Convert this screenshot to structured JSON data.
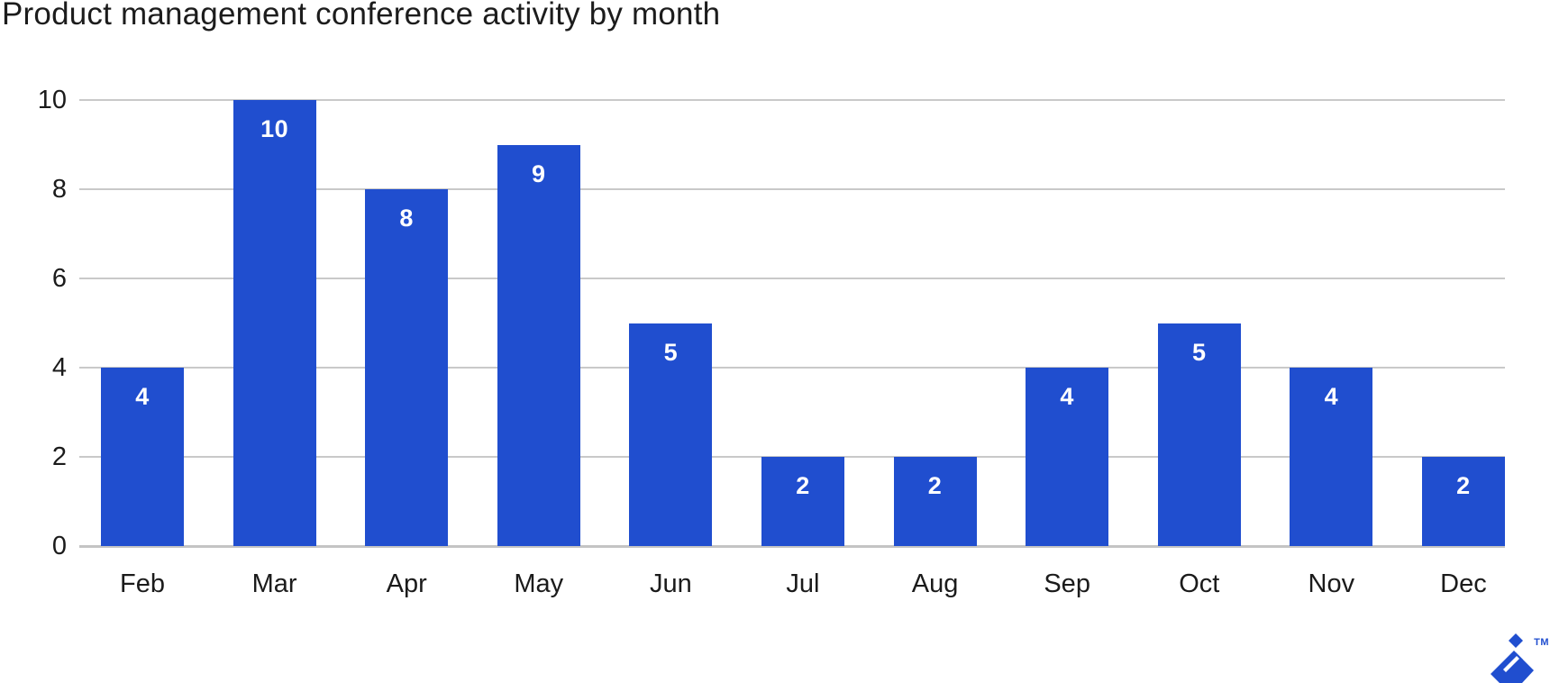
{
  "title": "Product management conference activity by month",
  "brand": {
    "trademark": "TM",
    "accent_color": "#204ECF"
  },
  "chart_data": {
    "type": "bar",
    "title": "Product management conference activity by month",
    "categories": [
      "Feb",
      "Mar",
      "Apr",
      "May",
      "Jun",
      "Jul",
      "Aug",
      "Sep",
      "Oct",
      "Nov",
      "Dec"
    ],
    "values": [
      4,
      10,
      8,
      9,
      5,
      2,
      2,
      4,
      5,
      4,
      2
    ],
    "xlabel": "",
    "ylabel": "",
    "ylim": [
      0,
      10
    ],
    "yticks": [
      0,
      2,
      4,
      6,
      8,
      10
    ],
    "grid": true,
    "legend": "none",
    "bar_color": "#204ECF",
    "value_label_color": "#FFFFFF",
    "gridline_color": "#C9C9C9",
    "axis_text_color": "#1B1B1B"
  }
}
